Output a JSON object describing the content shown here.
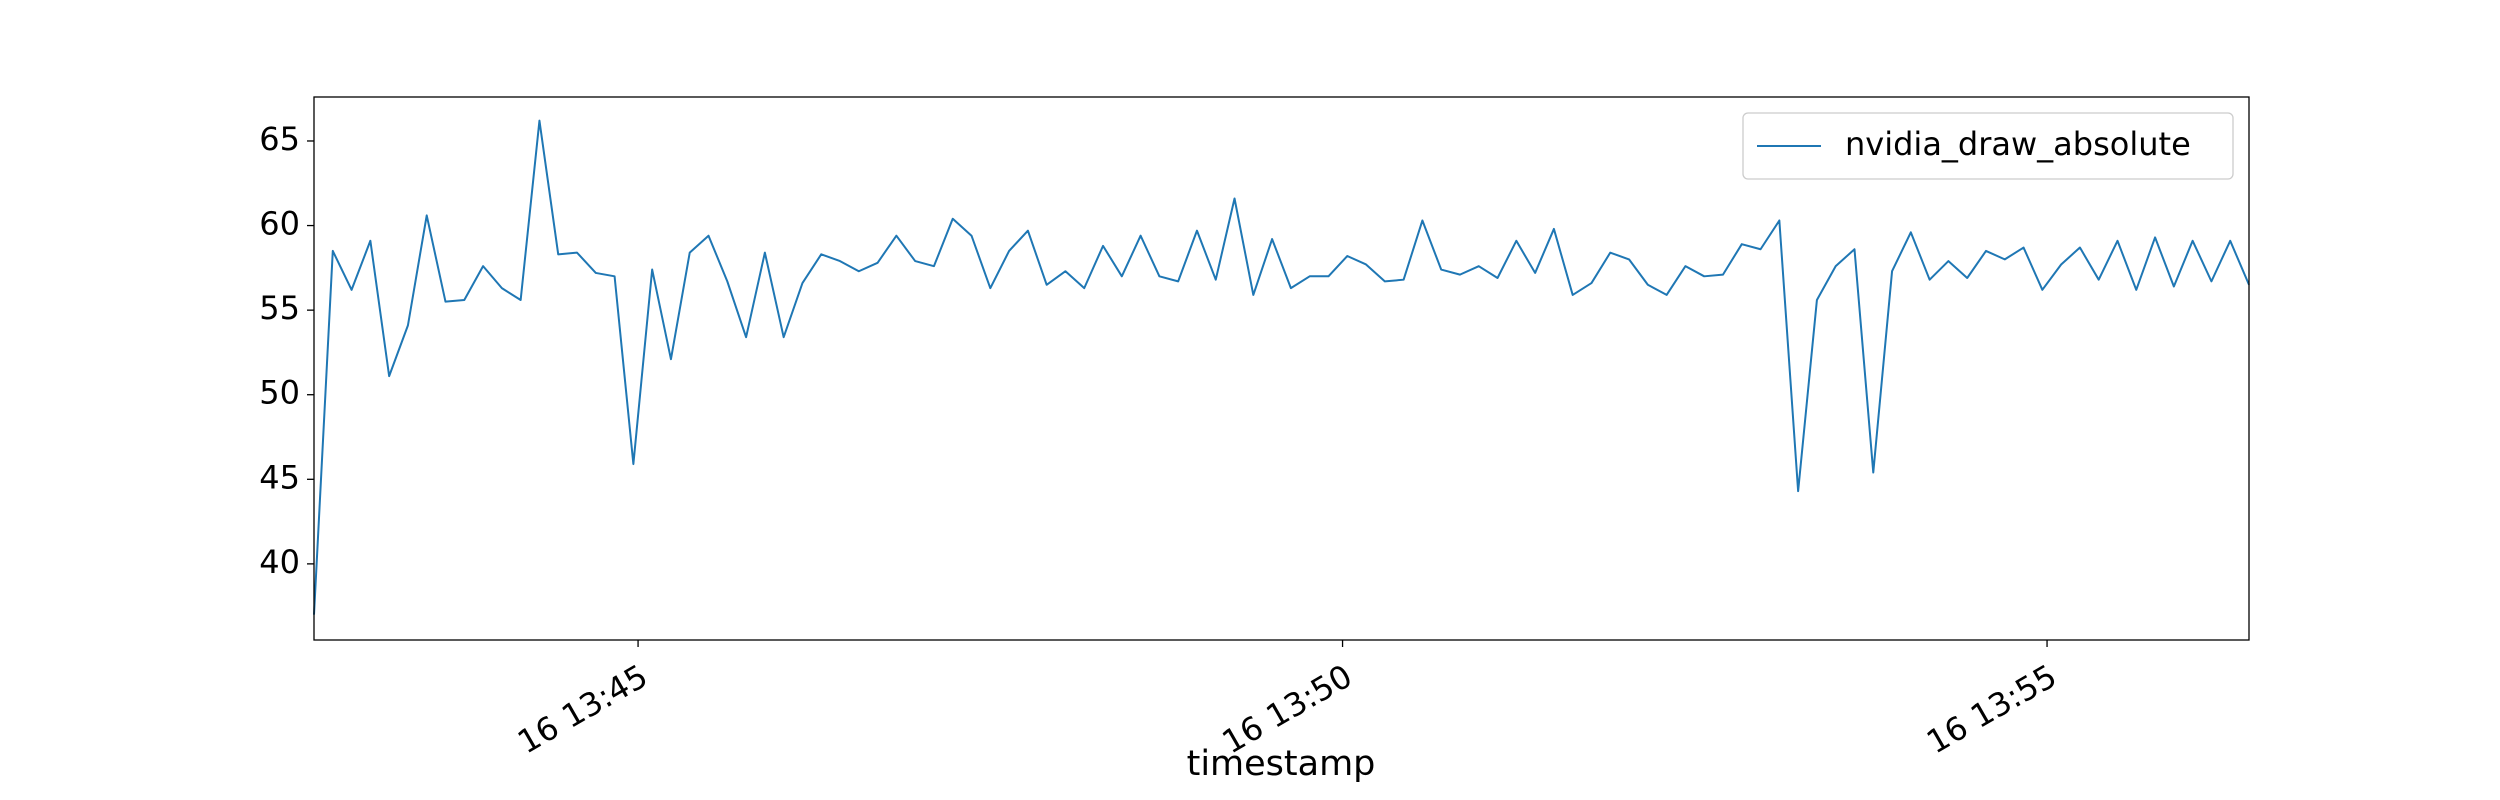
{
  "chart_data": {
    "type": "line",
    "xlabel": "timestamp",
    "x": [
      "16 13:42:42",
      "16 13:42:50",
      "16 13:42:58",
      "16 13:43:06",
      "16 13:43:14",
      "16 13:43:22",
      "16 13:43:30",
      "16 13:43:38",
      "16 13:43:46",
      "16 13:43:54",
      "16 13:44:02",
      "16 13:44:10",
      "16 13:44:18",
      "16 13:44:26",
      "16 13:44:34",
      "16 13:44:42",
      "16 13:44:50",
      "16 13:44:58",
      "16 13:45:06",
      "16 13:45:14",
      "16 13:45:22",
      "16 13:45:30",
      "16 13:45:38",
      "16 13:45:46",
      "16 13:45:54",
      "16 13:46:02",
      "16 13:46:10",
      "16 13:46:18",
      "16 13:46:26",
      "16 13:46:34",
      "16 13:46:42",
      "16 13:46:50",
      "16 13:46:58",
      "16 13:47:06",
      "16 13:47:14",
      "16 13:47:22",
      "16 13:47:30",
      "16 13:47:38",
      "16 13:47:46",
      "16 13:47:54",
      "16 13:48:02",
      "16 13:48:10",
      "16 13:48:18",
      "16 13:48:26",
      "16 13:48:34",
      "16 13:48:42",
      "16 13:48:50",
      "16 13:48:58",
      "16 13:49:06",
      "16 13:49:14",
      "16 13:49:22",
      "16 13:49:30",
      "16 13:49:38",
      "16 13:49:46",
      "16 13:49:54",
      "16 13:50:02",
      "16 13:50:10",
      "16 13:50:18",
      "16 13:50:26",
      "16 13:50:34",
      "16 13:50:42",
      "16 13:50:50",
      "16 13:50:58",
      "16 13:51:06",
      "16 13:51:14",
      "16 13:51:22",
      "16 13:51:30",
      "16 13:51:38",
      "16 13:51:46",
      "16 13:51:54",
      "16 13:52:02",
      "16 13:52:10",
      "16 13:52:18",
      "16 13:52:26",
      "16 13:52:34",
      "16 13:52:42",
      "16 13:52:50",
      "16 13:52:58",
      "16 13:53:06",
      "16 13:53:14",
      "16 13:53:22",
      "16 13:53:30",
      "16 13:53:38",
      "16 13:53:46",
      "16 13:53:54",
      "16 13:54:02",
      "16 13:54:10",
      "16 13:54:18",
      "16 13:54:26",
      "16 13:54:34",
      "16 13:54:42",
      "16 13:54:50",
      "16 13:54:58",
      "16 13:55:06",
      "16 13:55:14",
      "16 13:55:22",
      "16 13:55:30",
      "16 13:55:38",
      "16 13:55:46",
      "16 13:55:54",
      "16 13:56:02",
      "16 13:56:10",
      "16 13:56:18",
      "16 13:56:26"
    ],
    "series": [
      {
        "name": "nvidia_draw_absolute",
        "color": "#1f77b4",
        "values": [
          37,
          58.5,
          56.2,
          59.1,
          51.1,
          54.1,
          60.6,
          55.5,
          55.6,
          57.6,
          56.3,
          55.6,
          66.2,
          58.3,
          58.4,
          57.2,
          57.0,
          45.9,
          57.4,
          52.1,
          58.4,
          59.4,
          56.7,
          53.4,
          58.4,
          53.4,
          56.6,
          58.3,
          57.9,
          57.3,
          57.8,
          59.4,
          57.9,
          57.6,
          60.4,
          59.4,
          56.3,
          58.5,
          59.7,
          56.5,
          57.3,
          56.3,
          58.8,
          57.0,
          59.4,
          57.0,
          56.7,
          59.7,
          56.8,
          61.6,
          55.9,
          59.2,
          56.3,
          57.0,
          57.0,
          58.2,
          57.7,
          56.7,
          56.8,
          60.3,
          57.4,
          57.1,
          57.6,
          56.9,
          59.1,
          57.2,
          59.8,
          55.9,
          56.6,
          58.4,
          58.0,
          56.5,
          55.9,
          57.6,
          57.0,
          57.1,
          58.9,
          58.6,
          60.3,
          44.3,
          55.6,
          57.6,
          58.6,
          45.4,
          57.3,
          59.6,
          56.8,
          57.9,
          56.9,
          58.5,
          58.0,
          58.7,
          56.2,
          57.7,
          58.7,
          56.8,
          59.1,
          56.2,
          59.3,
          56.4,
          59.1,
          56.7,
          59.1,
          56.5
        ]
      }
    ],
    "xlim": [
      "16 13:42:42",
      "16 13:56:26"
    ],
    "xticks": [
      "16 13:45",
      "16 13:50",
      "16 13:55"
    ],
    "ylim": [
      35.5,
      67.6
    ],
    "yticks": [
      40,
      45,
      50,
      55,
      60,
      65
    ],
    "legend": "upper right"
  }
}
